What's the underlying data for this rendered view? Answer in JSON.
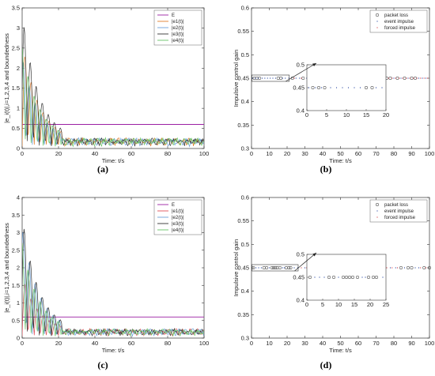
{
  "chart_data": [
    {
      "id": "a",
      "type": "line",
      "panel_label": "(a)",
      "xlabel": "Time: t/s",
      "ylabel": "|e_i(t)|,i=1,2,3,4 and boundedness",
      "xlim": [
        0,
        100
      ],
      "ylim": [
        0,
        3.5
      ],
      "xticks": [
        0,
        20,
        40,
        60,
        80,
        100
      ],
      "yticks": [
        0,
        0.5,
        1,
        1.5,
        2,
        2.5,
        3,
        3.5
      ],
      "legend": "top-right",
      "series": [
        {
          "name": "E",
          "color": "#9b1fa3",
          "x": [
            0,
            100
          ],
          "y": [
            0.6,
            0.6
          ]
        },
        {
          "name": "|e1(t)|",
          "color": "#e07b2a",
          "amp": 2.5,
          "phase": 0.0
        },
        {
          "name": "|e2(t)|",
          "color": "#6aa0d8",
          "amp": 2.1,
          "phase": 0.35
        },
        {
          "name": "|e3(t)|",
          "color": "#333333",
          "amp": 3.2,
          "phase": 0.15
        },
        {
          "name": "|e4(t)|",
          "color": "#66c466",
          "amp": 2.3,
          "phase": 0.55
        }
      ]
    },
    {
      "id": "b",
      "type": "scatter",
      "panel_label": "(b)",
      "xlabel": "Time: t/s",
      "ylabel": "Impulsive control gain",
      "xlim": [
        0,
        100
      ],
      "ylim": [
        0.3,
        0.6
      ],
      "xticks": [
        0,
        10,
        20,
        30,
        40,
        50,
        60,
        70,
        80,
        90,
        100
      ],
      "yticks": [
        0.3,
        0.35,
        0.4,
        0.45,
        0.5,
        0.55,
        0.6
      ],
      "legend": "top-right",
      "series": [
        {
          "name": "packet loss",
          "marker": "circle",
          "color": "#555555",
          "x": [
            1.5,
            3,
            4.5,
            15,
            16.5,
            23,
            29,
            32,
            34,
            36,
            38,
            40,
            43,
            45,
            47,
            52,
            58,
            61,
            65,
            71,
            76,
            78,
            82,
            86,
            90,
            92
          ],
          "y": 0.45
        },
        {
          "name": "event impulse",
          "marker": "dot",
          "color": "#1f3f9e",
          "x": [
            0.5,
            2.2,
            3.7,
            6,
            7.5,
            9,
            10.5,
            12,
            13.5,
            17.5,
            19,
            21,
            25,
            27,
            31,
            37,
            41,
            44,
            49,
            54,
            56,
            60,
            63,
            67,
            69,
            73,
            80,
            84,
            88,
            94,
            96,
            98
          ],
          "y": 0.45
        },
        {
          "name": "forced impulse",
          "marker": "dot",
          "color": "#d0303b",
          "x": [
            24,
            28,
            33,
            35,
            39,
            42,
            46,
            48,
            50,
            51,
            53,
            55,
            57,
            59,
            62,
            64,
            66,
            68,
            70,
            72,
            74,
            75,
            77,
            79,
            81,
            83,
            85,
            87,
            89,
            91,
            93,
            95,
            97,
            99
          ],
          "y": 0.45
        }
      ],
      "inset": {
        "xlim": [
          0,
          20
        ],
        "ylim": [
          0.4,
          0.5
        ],
        "xticks": [
          0,
          5,
          10,
          15,
          20
        ],
        "yticks": [
          0.4,
          0.45,
          0.5
        ]
      }
    },
    {
      "id": "c",
      "type": "line",
      "panel_label": "(c)",
      "xlabel": "Time: t/s",
      "ylabel": "|e_i(t)|,i=1,2,3,4 and boundedness",
      "xlim": [
        0,
        100
      ],
      "ylim": [
        0,
        4
      ],
      "xticks": [
        0,
        20,
        40,
        60,
        80,
        100
      ],
      "yticks": [
        0,
        0.5,
        1,
        1.5,
        2,
        2.5,
        3,
        3.5,
        4
      ],
      "legend": "top-right",
      "series": [
        {
          "name": "E",
          "color": "#9b1fa3",
          "x": [
            0,
            100
          ],
          "y": [
            0.6,
            0.6
          ]
        },
        {
          "name": "|e1(t)|",
          "color": "#e0505a",
          "amp": 1.6,
          "phase": 0.0
        },
        {
          "name": "|e2(t)|",
          "color": "#6aa0d8",
          "amp": 3.0,
          "phase": 0.35
        },
        {
          "name": "|e3(t)|",
          "color": "#333333",
          "amp": 3.3,
          "phase": 0.15
        },
        {
          "name": "|e4(t)|",
          "color": "#66c466",
          "amp": 2.5,
          "phase": 0.55
        }
      ]
    },
    {
      "id": "d",
      "type": "scatter",
      "panel_label": "(d)",
      "xlabel": "Time: t/s",
      "ylabel": "Impulsive control gain",
      "xlim": [
        0,
        100
      ],
      "ylim": [
        0.3,
        0.6
      ],
      "xticks": [
        0,
        10,
        20,
        30,
        40,
        50,
        60,
        70,
        80,
        90,
        100
      ],
      "yticks": [
        0.3,
        0.35,
        0.4,
        0.45,
        0.5,
        0.55,
        0.6
      ],
      "legend": "top-right",
      "series": [
        {
          "name": "packet loss",
          "marker": "circle",
          "color": "#555555",
          "x": [
            1,
            7,
            8.5,
            11.5,
            12.5,
            13.5,
            14.5,
            16,
            19.5,
            21,
            22,
            35,
            41,
            48,
            55,
            62,
            70,
            84,
            88,
            90,
            97,
            100
          ],
          "y": 0.45
        },
        {
          "name": "event impulse",
          "marker": "dot",
          "color": "#1f3f9e",
          "x": [
            2.5,
            4,
            5.5,
            10,
            17.5,
            18.5,
            24,
            26,
            30,
            33,
            38,
            44,
            46,
            52,
            58,
            60,
            66,
            73,
            75,
            78,
            81,
            86,
            92,
            94
          ],
          "y": 0.45
        },
        {
          "name": "forced impulse",
          "marker": "dot",
          "color": "#d0303b",
          "x": [
            28,
            31,
            36,
            39,
            42,
            47,
            50,
            53,
            56,
            63,
            65,
            68,
            71,
            76,
            79,
            82,
            95,
            98
          ],
          "y": 0.45
        }
      ],
      "inset": {
        "xlim": [
          0,
          25
        ],
        "ylim": [
          0.4,
          0.5
        ],
        "xticks": [
          0,
          5,
          10,
          15,
          20,
          25
        ],
        "yticks": [
          0.4,
          0.45,
          0.5
        ]
      }
    }
  ]
}
